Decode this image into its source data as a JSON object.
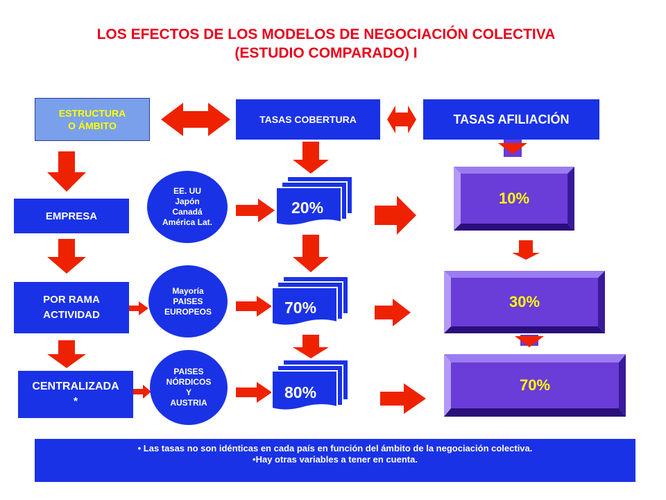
{
  "title": {
    "line1": "LOS EFECTOS DE LOS MODELOS DE  NEGOCIACIÓN COLECTIVA",
    "line2": "(ESTUDIO COMPARADO) I"
  },
  "header": {
    "structure": [
      "ESTRUCTURA",
      "O ÁMBITO"
    ],
    "coverage": "TASAS COBERTURA",
    "affiliation": "TASAS AFILIACIÓN"
  },
  "rows": [
    {
      "level": [
        "EMPRESA"
      ],
      "countries": [
        "EE. UU",
        "Japón",
        "Canadá",
        "América Lat."
      ],
      "coverage": "20%",
      "affiliation": "10%"
    },
    {
      "level": [
        "POR RAMA",
        "ACTIVIDAD"
      ],
      "countries": [
        "Mayoría",
        "PAISES",
        "EUROPEOS"
      ],
      "coverage": "70%",
      "affiliation": "30%"
    },
    {
      "level": [
        "CENTRALIZADA",
        "*"
      ],
      "countries": [
        "PAISES",
        "NÓRDICOS",
        "Y",
        "AUSTRIA"
      ],
      "coverage": "80%",
      "affiliation": "70%"
    }
  ],
  "note": {
    "line1": "• Las tasas no son idénticas en cada país  en función del ámbito de la negociación colectiva.",
    "line2": "•Hay otras variables a tener en cuenta."
  },
  "colors": {
    "box_blue": "#1a32e6",
    "arrow_red": "#ee2200",
    "bevel_purple": "#6a3cd8",
    "title_red": "#e8001c",
    "label_yellow": "#ffff00"
  }
}
